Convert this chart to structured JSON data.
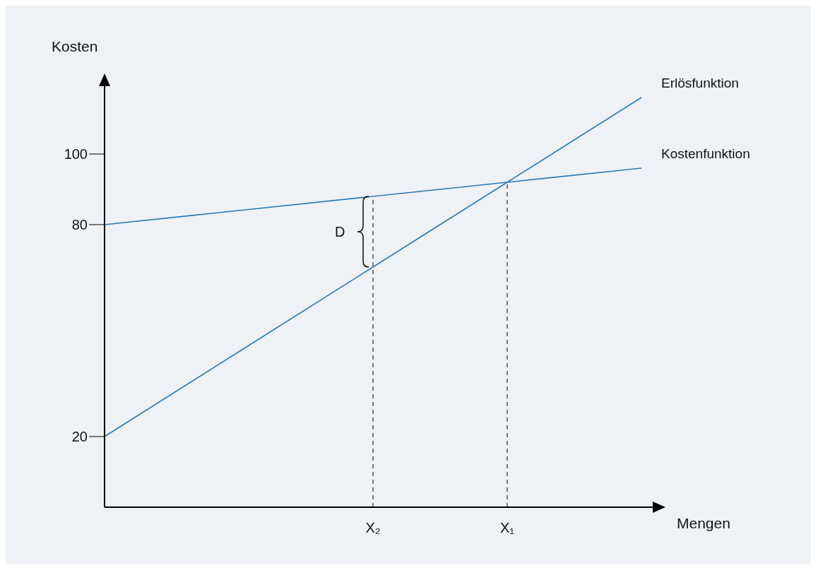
{
  "chart_data": {
    "type": "line",
    "xlabel": "Mengen",
    "ylabel": "Kosten",
    "ylim": [
      0,
      120
    ],
    "categories": [
      null,
      null,
      "X₂",
      "X₁",
      null
    ],
    "yticks": [
      20,
      80,
      100
    ],
    "series": [
      {
        "name": "Erlösfunktion",
        "color": "#2a7ab8",
        "values": [
          20,
          44,
          68,
          92,
          116
        ]
      },
      {
        "name": "Kostenfunktion",
        "color": "#2a7ab8",
        "values": [
          80,
          84,
          88,
          92,
          96
        ]
      }
    ],
    "ref_lines": [
      {
        "axis": "x",
        "value": "X₂",
        "label": null,
        "color": "#000000",
        "line_style": "dashed"
      },
      {
        "axis": "x",
        "value": "X₁",
        "label": null,
        "color": "#000000",
        "line_style": "dashed"
      }
    ],
    "annotations": [
      {
        "text": "D",
        "x": "X₂",
        "y": 78
      }
    ],
    "grid": false,
    "marker": "none",
    "line_style": "solid"
  }
}
